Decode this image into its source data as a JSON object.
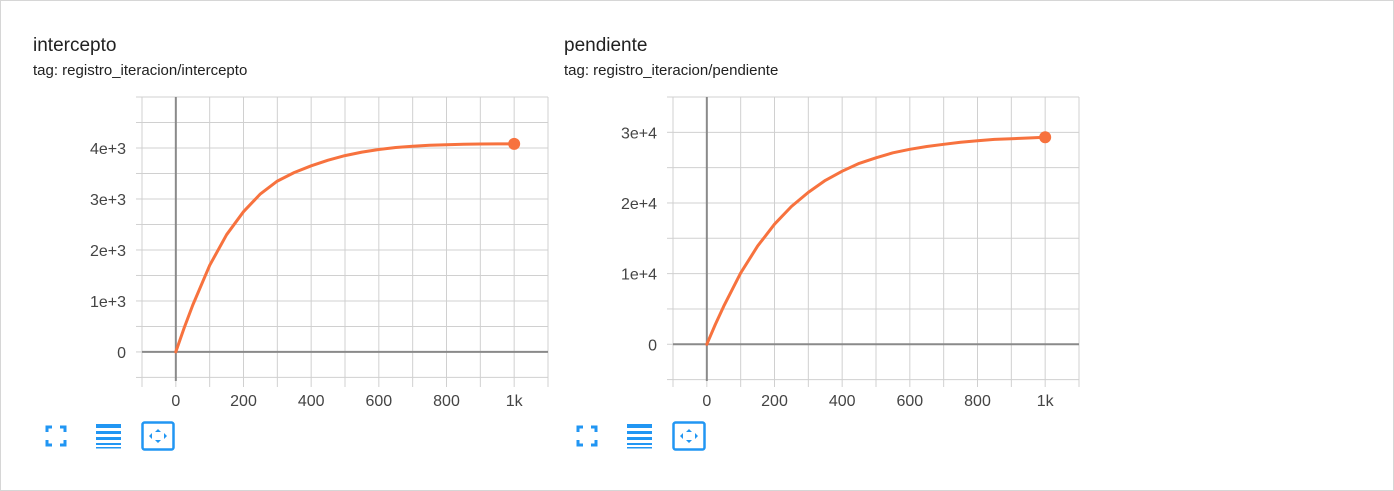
{
  "colors": {
    "line": "#f7723e",
    "grid": "#d0d0d0",
    "axis": "#8a8a8a",
    "icon": "#2196f3",
    "text": "#212121",
    "tick_text": "#444444"
  },
  "toolbar_icons": [
    "fullscreen-icon",
    "data-table-icon",
    "fit-domain-icon"
  ],
  "cards": [
    {
      "title": "intercepto",
      "tag": "tag: registro_iteracion/intercepto"
    },
    {
      "title": "pendiente",
      "tag": "tag: registro_iteracion/pendiente"
    }
  ],
  "chart_data": [
    {
      "type": "line",
      "title": "intercepto",
      "subtitle": "tag: registro_iteracion/intercepto",
      "xlim": [
        -100,
        1100
      ],
      "ylim": [
        -570,
        5000
      ],
      "x_ticks": [
        0,
        200,
        400,
        600,
        800,
        1000
      ],
      "x_tick_labels": [
        "0",
        "200",
        "400",
        "600",
        "800",
        "1k"
      ],
      "y_ticks": [
        0,
        1000,
        2000,
        3000,
        4000
      ],
      "y_tick_labels": [
        "0",
        "1e+3",
        "2e+3",
        "3e+3",
        "4e+3"
      ],
      "grid": true,
      "series": [
        {
          "x": [
            0,
            25,
            50,
            100,
            150,
            200,
            250,
            300,
            350,
            400,
            450,
            500,
            550,
            600,
            650,
            700,
            750,
            800,
            850,
            900,
            950,
            1000
          ],
          "y": [
            0,
            480,
            920,
            1700,
            2300,
            2750,
            3100,
            3350,
            3520,
            3650,
            3760,
            3850,
            3920,
            3970,
            4010,
            4035,
            4055,
            4065,
            4072,
            4078,
            4080,
            4080
          ]
        }
      ]
    },
    {
      "type": "line",
      "title": "pendiente",
      "subtitle": "tag: registro_iteracion/pendiente",
      "xlim": [
        -100,
        1100
      ],
      "ylim": [
        -5200,
        35000
      ],
      "x_ticks": [
        0,
        200,
        400,
        600,
        800,
        1000
      ],
      "x_tick_labels": [
        "0",
        "200",
        "400",
        "600",
        "800",
        "1k"
      ],
      "y_ticks": [
        0,
        10000,
        20000,
        30000
      ],
      "y_tick_labels": [
        "0",
        "1e+4",
        "2e+4",
        "3e+4"
      ],
      "grid": true,
      "series": [
        {
          "x": [
            0,
            25,
            50,
            100,
            150,
            200,
            250,
            300,
            350,
            400,
            450,
            500,
            550,
            600,
            650,
            700,
            750,
            800,
            850,
            900,
            950,
            1000
          ],
          "y": [
            0,
            2800,
            5400,
            10100,
            13900,
            17000,
            19500,
            21500,
            23200,
            24500,
            25600,
            26400,
            27100,
            27600,
            28000,
            28300,
            28600,
            28800,
            29000,
            29100,
            29200,
            29300
          ]
        }
      ]
    }
  ]
}
